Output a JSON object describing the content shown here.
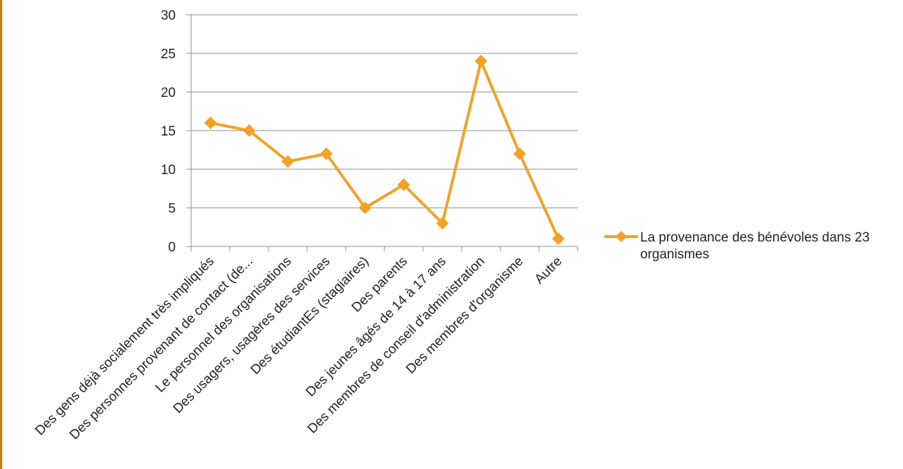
{
  "chart_data": {
    "type": "line",
    "categories": [
      "Des gens déjà socialement très impliqués",
      "Des personnes provenant de contact (de...",
      "Le personnel des organisations",
      "Des usagers, usagères des services",
      "Des étudiantEs (stagiaires)",
      "Des parents",
      "Des jeunes âgés de 14 à 17 ans",
      "Des membres de conseil d'administration",
      "Des membres d'organisme",
      "Autre"
    ],
    "series": [
      {
        "name": "La provenance des bénévoles dans 23 organismes",
        "values": [
          16,
          15,
          11,
          12,
          5,
          8,
          3,
          24,
          12,
          1
        ]
      }
    ],
    "yticks": [
      "0",
      "5",
      "10",
      "15",
      "20",
      "25",
      "30"
    ],
    "ylim": [
      0,
      30
    ],
    "grid": true,
    "legend_position": "right",
    "title": "",
    "xlabel": "",
    "ylabel": ""
  },
  "legend": {
    "line1": "La provenance des bénévoles dans 23",
    "line2": "organismes"
  },
  "colors": {
    "series": "#F4A127",
    "grid": "#8c8c8c",
    "axis": "#8c8c8c",
    "frame": "#C17A22"
  }
}
